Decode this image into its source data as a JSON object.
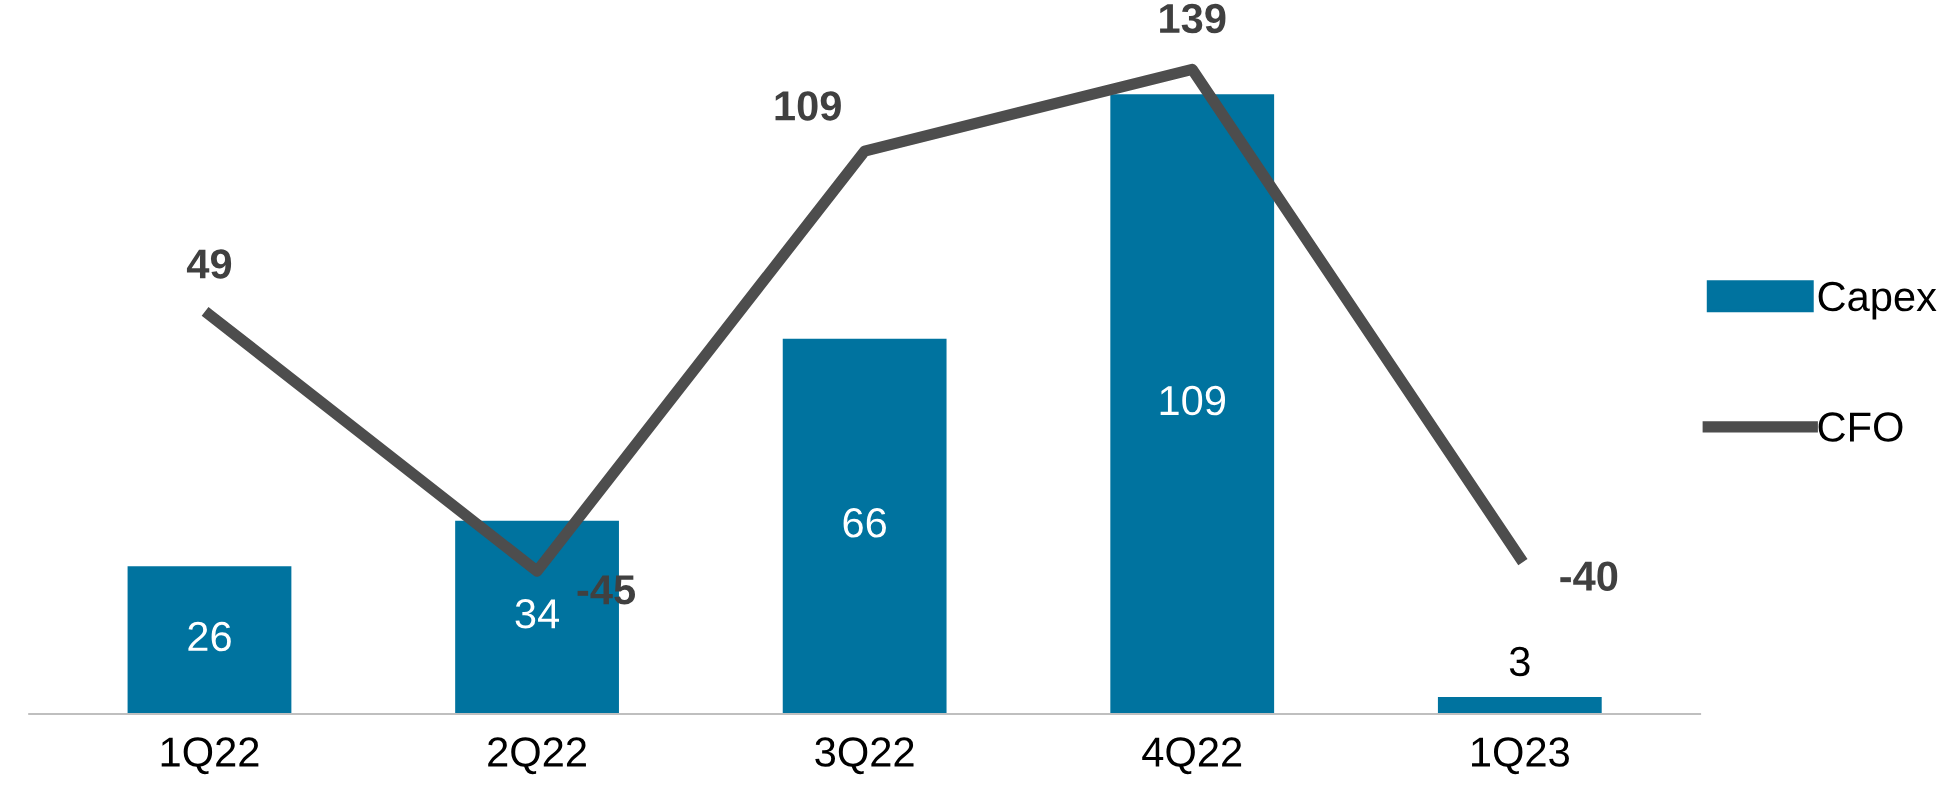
{
  "chart_data": {
    "type": "bar",
    "categories": [
      "1Q22",
      "2Q22",
      "3Q22",
      "4Q22",
      "1Q23"
    ],
    "series": [
      {
        "name": "Capex",
        "color": "#00739f",
        "values": [
          26,
          34,
          66,
          109,
          3
        ]
      },
      {
        "name": "CFO",
        "type": "line",
        "axis": "y2",
        "color": "#4d4d4d",
        "values": [
          49,
          -45,
          109,
          139,
          -40
        ]
      }
    ],
    "data_labels": true,
    "legend": "right",
    "grid": false,
    "marker": "none",
    "line_style": "solid"
  }
}
